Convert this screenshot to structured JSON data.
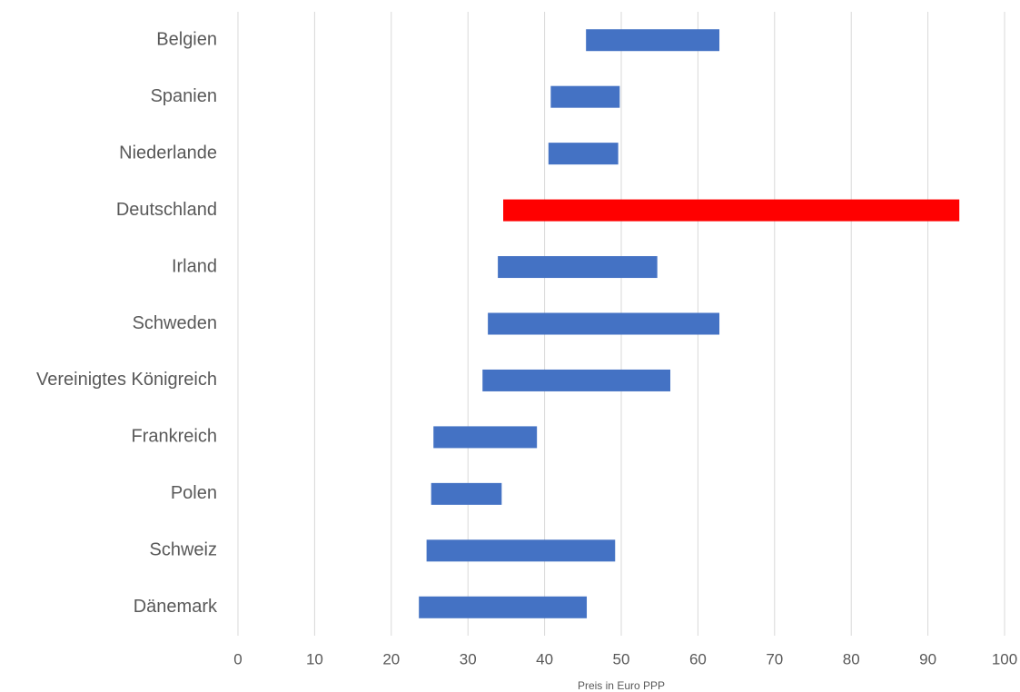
{
  "chart_data": {
    "type": "range-bar",
    "x_label": "Preis in Euro PPP",
    "categories": [
      "Belgien",
      "Spanien",
      "Niederlande",
      "Deutschland",
      "Irland",
      "Schweden",
      "Vereinigtes Königreich",
      "Frankreich",
      "Polen",
      "Schweiz",
      "Dänemark"
    ],
    "low": [
      45.4,
      40.8,
      40.5,
      34.6,
      33.9,
      32.6,
      31.9,
      25.5,
      25.2,
      24.6,
      23.6
    ],
    "high": [
      62.8,
      49.8,
      49.6,
      94.1,
      54.7,
      62.8,
      56.4,
      39.0,
      34.4,
      49.2,
      45.5
    ],
    "colors": [
      "#4472c4",
      "#4472c4",
      "#4472c4",
      "#ff0000",
      "#4472c4",
      "#4472c4",
      "#4472c4",
      "#4472c4",
      "#4472c4",
      "#4472c4",
      "#4472c4"
    ],
    "xlim": [
      0,
      100
    ],
    "xticks": [
      0,
      10,
      20,
      30,
      40,
      50,
      60,
      70,
      80,
      90,
      100
    ],
    "grid": true
  }
}
